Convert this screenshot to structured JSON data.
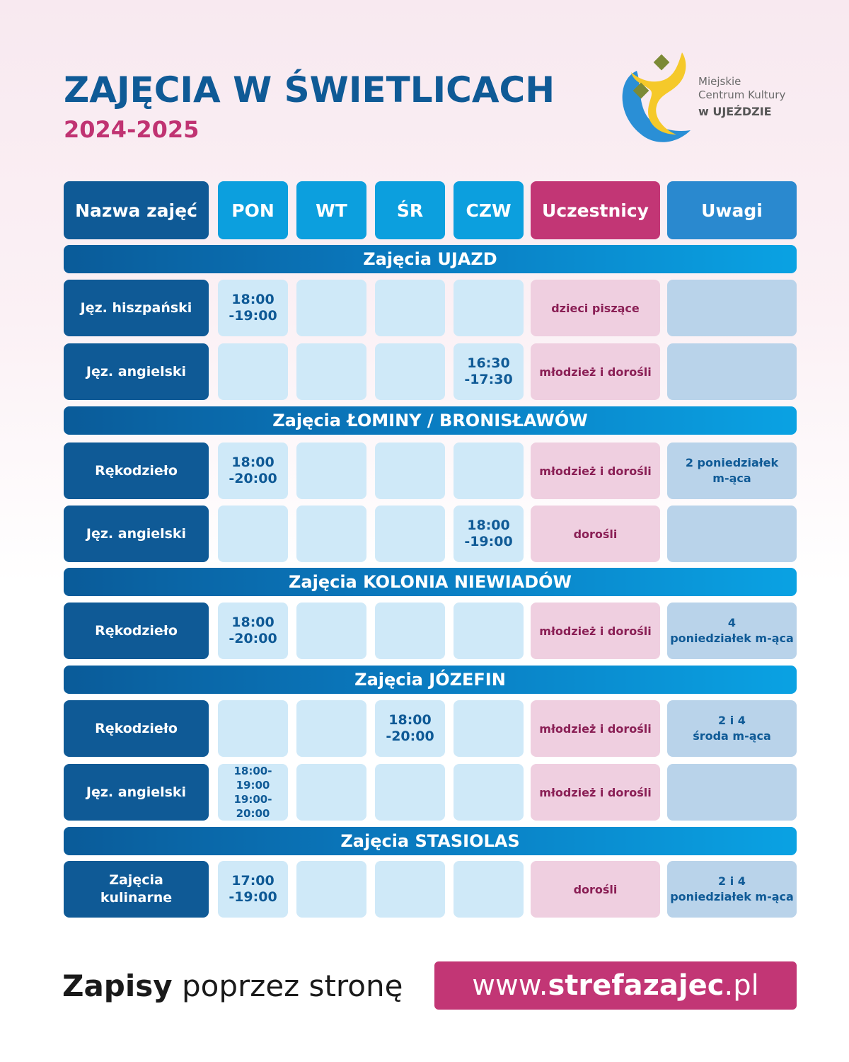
{
  "title": "ZAJĘCIA W ŚWIETLICACH",
  "subtitle": "2024-2025",
  "logo": {
    "line1": "Miejskie",
    "line2": "Centrum Kultury",
    "line3": "w UJEŹDZIE",
    "colors": {
      "blue": "#2a8fd6",
      "yellow": "#f5c92a",
      "diamond": "#7c8a36"
    }
  },
  "header": {
    "name": "Nazwa zajęć",
    "pon": "PON",
    "wt": "WT",
    "sr": "ŚR",
    "czw": "CZW",
    "participants": "Uczestnicy",
    "notes": "Uwagi"
  },
  "sections": [
    {
      "title": "Zajęcia UJAZD",
      "rows": [
        {
          "name": "Jęz. hiszpański",
          "pon": [
            "18:00",
            "-19:00"
          ],
          "wt": [],
          "sr": [],
          "czw": [],
          "participants": "dzieci piszące",
          "notes": []
        },
        {
          "name": "Jęz. angielski",
          "pon": [],
          "wt": [],
          "sr": [],
          "czw": [
            "16:30",
            "-17:30"
          ],
          "participants": "młodzież i dorośli",
          "notes": []
        }
      ]
    },
    {
      "title": "Zajęcia ŁOMINY / BRONISŁAWÓW",
      "rows": [
        {
          "name": "Rękodzieło",
          "pon": [
            "18:00",
            "-20:00"
          ],
          "wt": [],
          "sr": [],
          "czw": [],
          "participants": "młodzież i dorośli",
          "notes": [
            "2 poniedziałek",
            "m-ąca"
          ]
        },
        {
          "name": "Jęz. angielski",
          "pon": [],
          "wt": [],
          "sr": [],
          "czw": [
            "18:00",
            "-19:00"
          ],
          "participants": "dorośli",
          "notes": []
        }
      ]
    },
    {
      "title": "Zajęcia KOLONIA NIEWIADÓW",
      "rows": [
        {
          "name": "Rękodzieło",
          "pon": [
            "18:00",
            "-20:00"
          ],
          "wt": [],
          "sr": [],
          "czw": [],
          "participants": "młodzież i dorośli",
          "notes": [
            "4",
            "poniedziałek m-ąca"
          ]
        }
      ]
    },
    {
      "title": "Zajęcia JÓZEFIN",
      "rows": [
        {
          "name": "Rękodzieło",
          "pon": [],
          "wt": [],
          "sr": [
            "18:00",
            "-20:00"
          ],
          "czw": [],
          "participants": "młodzież i dorośli",
          "notes": [
            "2 i 4",
            "środa m-ąca"
          ]
        },
        {
          "name": "Jęz. angielski",
          "pon": [
            "18:00-19:00",
            "19:00-20:00"
          ],
          "wt": [],
          "sr": [],
          "czw": [],
          "participants": "młodzież i dorośli",
          "notes": []
        }
      ]
    },
    {
      "title": "Zajęcia STASIOLAS",
      "rows": [
        {
          "name": "Zajęcia\nkulinarne",
          "pon": [
            "17:00",
            "-19:00"
          ],
          "wt": [],
          "sr": [],
          "czw": [],
          "participants": "dorośli",
          "notes": [
            "2 i 4",
            "poniedziałek m-ąca"
          ]
        }
      ]
    }
  ],
  "footer": {
    "bold": "Zapisy",
    "rest": " poprzez stronę",
    "url_prefix": "www.",
    "url_bold": "strefazajec",
    "url_suffix": ".pl"
  },
  "colors": {
    "navy": "#0f5a96",
    "cyan": "#0c9fde",
    "magenta": "#c23675",
    "cell_light": "#cfe9f8",
    "participants_bg": "#efcfe0",
    "notes_bg": "#b9d3ea"
  }
}
